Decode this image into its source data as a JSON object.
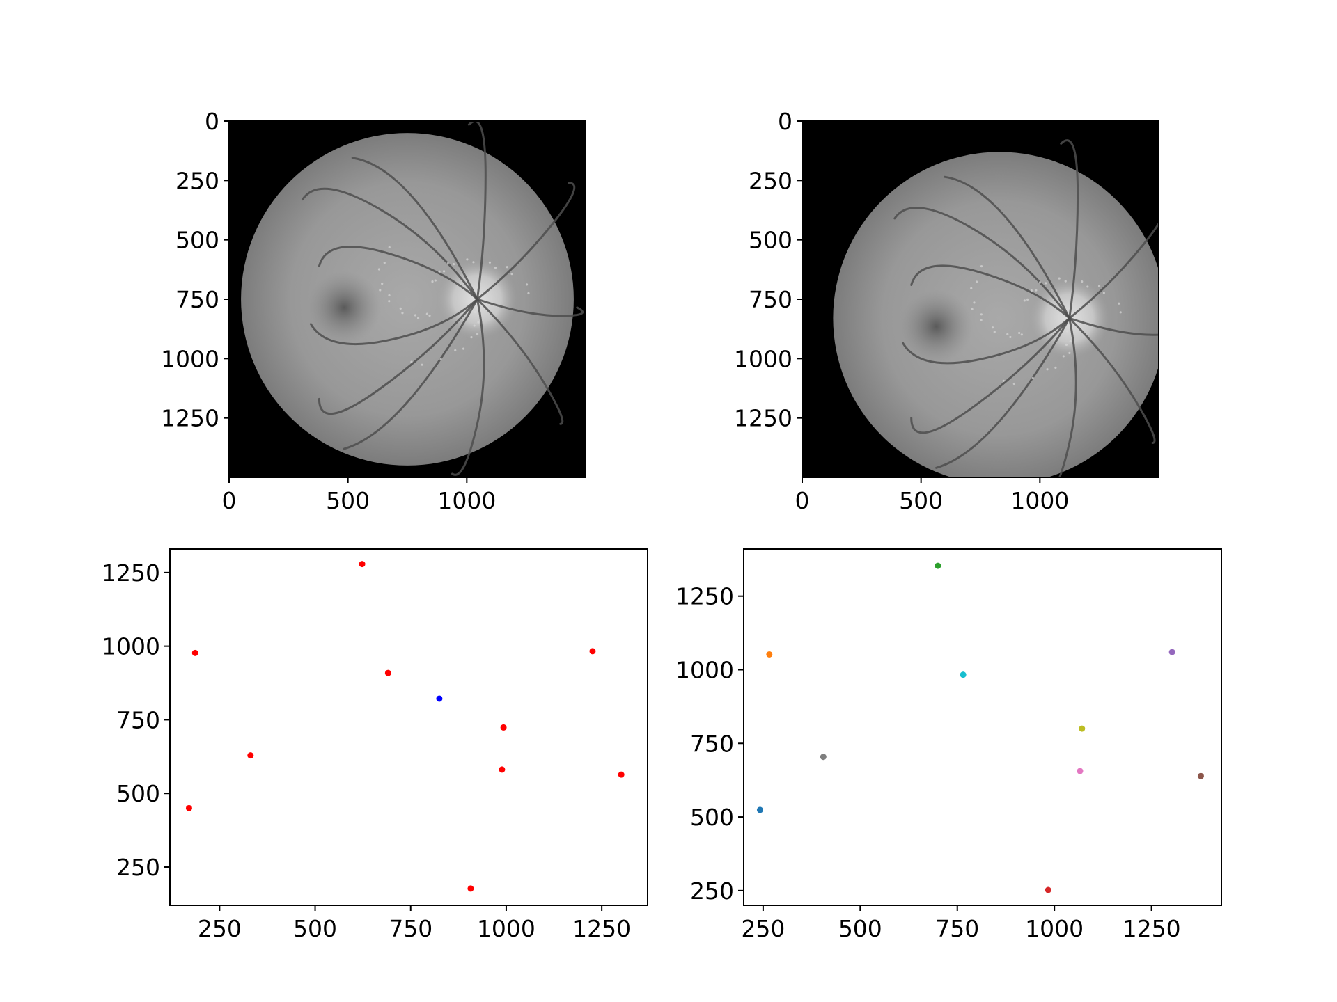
{
  "figure": {
    "background": "#ffffff",
    "image_background": "#000000"
  },
  "chart_data": [
    {
      "type": "image",
      "panel": "top-left",
      "content": "grayscale retinal fundus photograph (optic disc at right, fovea at left-center)",
      "xlim": [
        0,
        1500
      ],
      "ylim": [
        1500,
        0
      ],
      "xticks": [
        "0",
        "500",
        "1000"
      ],
      "yticks": [
        "0",
        "250",
        "500",
        "750",
        "1000",
        "1250"
      ],
      "fundus": {
        "center": [
          750,
          750
        ],
        "radius": 700
      }
    },
    {
      "type": "image",
      "panel": "top-right",
      "content": "grayscale retinal fundus photograph, shifted and cropped at right/bottom",
      "xlim": [
        0,
        1500
      ],
      "ylim": [
        1500,
        0
      ],
      "xticks": [
        "0",
        "500",
        "1000"
      ],
      "yticks": [
        "0",
        "250",
        "500",
        "750",
        "1000",
        "1250"
      ],
      "fundus": {
        "center": [
          830,
          830
        ],
        "radius": 700
      }
    },
    {
      "type": "scatter",
      "panel": "bottom-left",
      "xlim": [
        120,
        1370
      ],
      "ylim": [
        120,
        1330
      ],
      "xticks": [
        "250",
        "500",
        "750",
        "1000",
        "1250"
      ],
      "yticks": [
        "250",
        "500",
        "750",
        "1000",
        "1250"
      ],
      "grid": false,
      "series": [
        {
          "color": "#ff0000",
          "points": [
            [
              623,
              1279
            ],
            [
              186,
              977
            ],
            [
              691,
              909
            ],
            [
              1226,
              983
            ],
            [
              993,
              724
            ],
            [
              331,
              629
            ],
            [
              989,
              581
            ],
            [
              1301,
              564
            ],
            [
              170,
              450
            ],
            [
              907,
              177
            ]
          ]
        },
        {
          "color": "#0000ff",
          "points": [
            [
              825,
              822
            ]
          ]
        }
      ]
    },
    {
      "type": "scatter",
      "panel": "bottom-right",
      "xlim": [
        200,
        1430
      ],
      "ylim": [
        200,
        1410
      ],
      "xticks": [
        "250",
        "500",
        "750",
        "1000",
        "1250"
      ],
      "yticks": [
        "250",
        "500",
        "750",
        "1000",
        "1250"
      ],
      "grid": false,
      "series": [
        {
          "color": "#1f77b4",
          "points": [
            [
              242,
              524
            ]
          ]
        },
        {
          "color": "#ff7f0e",
          "points": [
            [
              266,
              1052
            ]
          ]
        },
        {
          "color": "#2ca02c",
          "points": [
            [
              700,
              1353
            ]
          ]
        },
        {
          "color": "#d62728",
          "points": [
            [
              984,
              252
            ]
          ]
        },
        {
          "color": "#9467bd",
          "points": [
            [
              1303,
              1060
            ]
          ]
        },
        {
          "color": "#8c564b",
          "points": [
            [
              1377,
              639
            ]
          ]
        },
        {
          "color": "#e377c2",
          "points": [
            [
              1066,
              656
            ]
          ]
        },
        {
          "color": "#7f7f7f",
          "points": [
            [
              405,
              704
            ]
          ]
        },
        {
          "color": "#bcbd22",
          "points": [
            [
              1071,
              800
            ]
          ]
        },
        {
          "color": "#17becf",
          "points": [
            [
              765,
              983
            ]
          ]
        }
      ]
    }
  ]
}
